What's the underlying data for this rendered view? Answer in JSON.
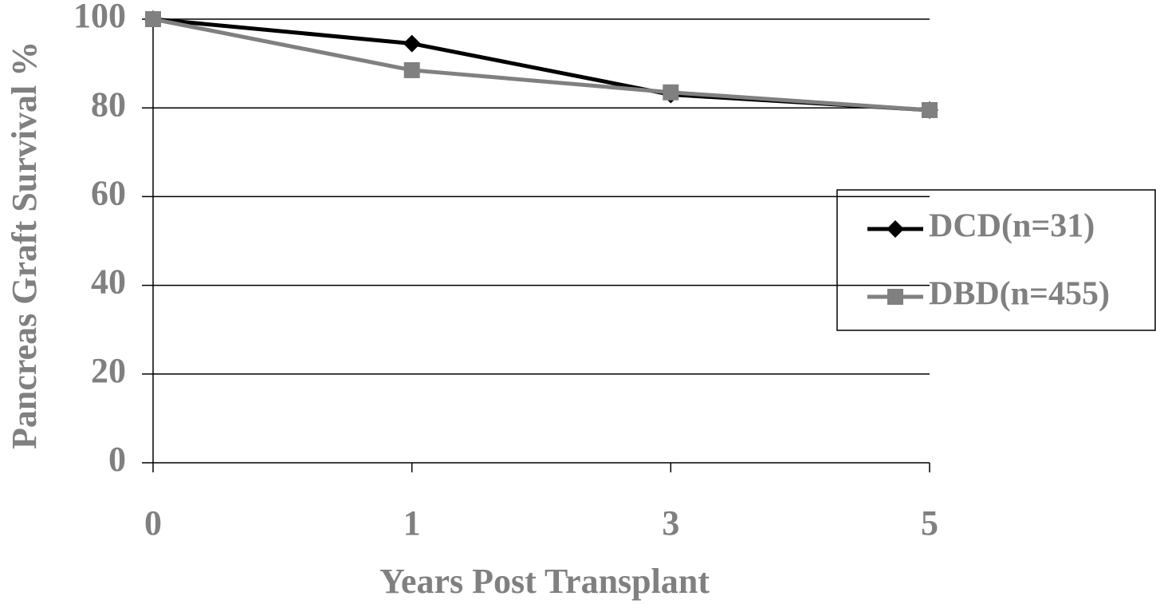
{
  "chart_data": {
    "type": "line",
    "x_label": "Years Post Transplant",
    "y_label": "Pancreas Graft Survival %",
    "categories": [
      "0",
      "1",
      "3",
      "5"
    ],
    "series": [
      {
        "name": "DCD(n=31)",
        "color": "#000000",
        "marker": "diamond",
        "values": [
          100,
          94.5,
          83,
          79.5
        ]
      },
      {
        "name": "DBD(n=455)",
        "color": "#808080",
        "marker": "square",
        "values": [
          100,
          88.5,
          83.5,
          79.5
        ]
      }
    ],
    "ylim": [
      0,
      100
    ],
    "yticks": [
      0,
      20,
      40,
      60,
      80,
      100
    ],
    "grid": true,
    "legend": "right"
  }
}
